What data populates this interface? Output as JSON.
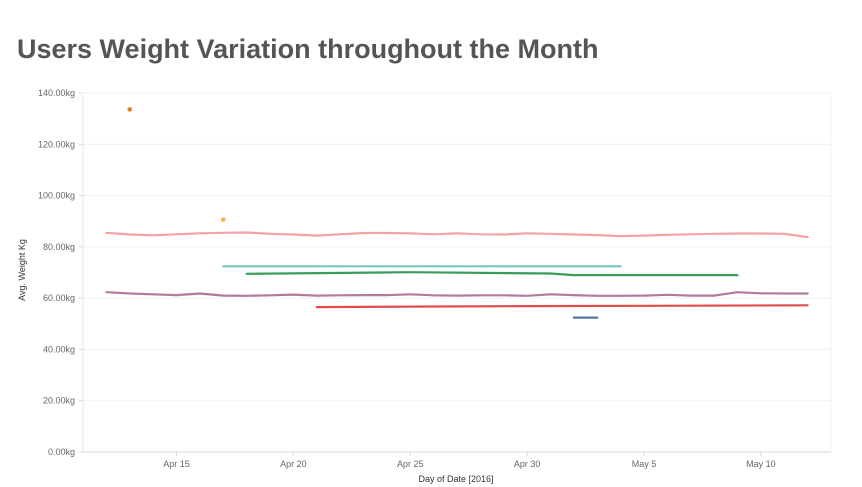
{
  "title": "Users Weight Variation throughout the Month",
  "chart_data": {
    "type": "line",
    "title": "Users Weight Variation throughout the Month",
    "xlabel": "Day of Date [2016]",
    "ylabel": "Avg. Weight Kg",
    "x_axis_type": "date",
    "xlim": [
      "2016-04-11",
      "2016-05-13"
    ],
    "ylim": [
      0,
      140
    ],
    "x_ticks": [
      {
        "date": "2016-04-15",
        "label": "Apr 15"
      },
      {
        "date": "2016-04-20",
        "label": "Apr 20"
      },
      {
        "date": "2016-04-25",
        "label": "Apr 25"
      },
      {
        "date": "2016-04-30",
        "label": "Apr 30"
      },
      {
        "date": "2016-05-05",
        "label": "May 5"
      },
      {
        "date": "2016-05-10",
        "label": "May 10"
      }
    ],
    "y_ticks": [
      {
        "value": 0,
        "label": "0.00kg"
      },
      {
        "value": 20,
        "label": "20.00kg"
      },
      {
        "value": 40,
        "label": "40.00kg"
      },
      {
        "value": 60,
        "label": "60.00kg"
      },
      {
        "value": 80,
        "label": "80.00kg"
      },
      {
        "value": 100,
        "label": "100.00kg"
      },
      {
        "value": 120,
        "label": "120.00kg"
      },
      {
        "value": 140,
        "label": "140.00kg"
      }
    ],
    "grid": "horizontal",
    "legend": "none",
    "series": [
      {
        "color": "#f4a3a5",
        "x": [
          "2016-04-12",
          "2016-04-13",
          "2016-04-14",
          "2016-04-15",
          "2016-04-16",
          "2016-04-17",
          "2016-04-18",
          "2016-04-19",
          "2016-04-20",
          "2016-04-21",
          "2016-04-22",
          "2016-04-23",
          "2016-04-24",
          "2016-04-25",
          "2016-04-26",
          "2016-04-27",
          "2016-04-28",
          "2016-04-29",
          "2016-04-30",
          "2016-05-01",
          "2016-05-02",
          "2016-05-03",
          "2016-05-04",
          "2016-05-05",
          "2016-05-06",
          "2016-05-07",
          "2016-05-08",
          "2016-05-09",
          "2016-05-10",
          "2016-05-11",
          "2016-05-12"
        ],
        "y": [
          85.5,
          84.8,
          84.5,
          84.9,
          85.3,
          85.5,
          85.6,
          85.1,
          84.8,
          84.4,
          84.9,
          85.4,
          85.4,
          85.3,
          84.9,
          85.3,
          84.9,
          84.8,
          85.3,
          85.1,
          84.8,
          84.6,
          84.2,
          84.4,
          84.7,
          84.9,
          85.1,
          85.2,
          85.2,
          85.1,
          83.8
        ]
      },
      {
        "color": "#b07aa1",
        "x": [
          "2016-04-12",
          "2016-04-13",
          "2016-04-14",
          "2016-04-15",
          "2016-04-16",
          "2016-04-17",
          "2016-04-18",
          "2016-04-19",
          "2016-04-20",
          "2016-04-21",
          "2016-04-22",
          "2016-04-23",
          "2016-04-24",
          "2016-04-25",
          "2016-04-26",
          "2016-04-27",
          "2016-04-28",
          "2016-04-29",
          "2016-04-30",
          "2016-05-01",
          "2016-05-02",
          "2016-05-03",
          "2016-05-04",
          "2016-05-05",
          "2016-05-06",
          "2016-05-07",
          "2016-05-08",
          "2016-05-09",
          "2016-05-10",
          "2016-05-11",
          "2016-05-12"
        ],
        "y": [
          62.3,
          61.8,
          61.5,
          61.2,
          61.8,
          61.0,
          60.9,
          61.1,
          61.4,
          61.0,
          61.1,
          61.2,
          61.2,
          61.5,
          61.1,
          61.0,
          61.1,
          61.1,
          60.9,
          61.5,
          61.2,
          60.9,
          60.9,
          61.0,
          61.3,
          61.0,
          61.0,
          62.3,
          61.9,
          61.8,
          61.8
        ]
      },
      {
        "color": "#76c7c0",
        "x": [
          "2016-04-17",
          "2016-05-04"
        ],
        "y": [
          72.4,
          72.4
        ]
      },
      {
        "color": "#3a9c5c",
        "x": [
          "2016-04-18",
          "2016-04-25",
          "2016-05-01",
          "2016-05-02",
          "2016-05-09"
        ],
        "y": [
          69.5,
          70.1,
          69.6,
          69.0,
          69.0
        ]
      },
      {
        "color": "#e04b4b",
        "x": [
          "2016-04-21",
          "2016-04-25",
          "2016-04-30",
          "2016-05-05",
          "2016-05-12"
        ],
        "y": [
          56.5,
          56.7,
          56.9,
          57.0,
          57.2
        ]
      },
      {
        "color": "#4e79a7",
        "x": [
          "2016-05-02",
          "2016-05-03"
        ],
        "y": [
          52.4,
          52.4
        ]
      },
      {
        "color": "#e0802a",
        "x": [
          "2016-04-13"
        ],
        "y": [
          133.6
        ],
        "marker": "point"
      },
      {
        "color": "#f2b447",
        "x": [
          "2016-04-17"
        ],
        "y": [
          90.6
        ],
        "marker": "point"
      }
    ]
  }
}
